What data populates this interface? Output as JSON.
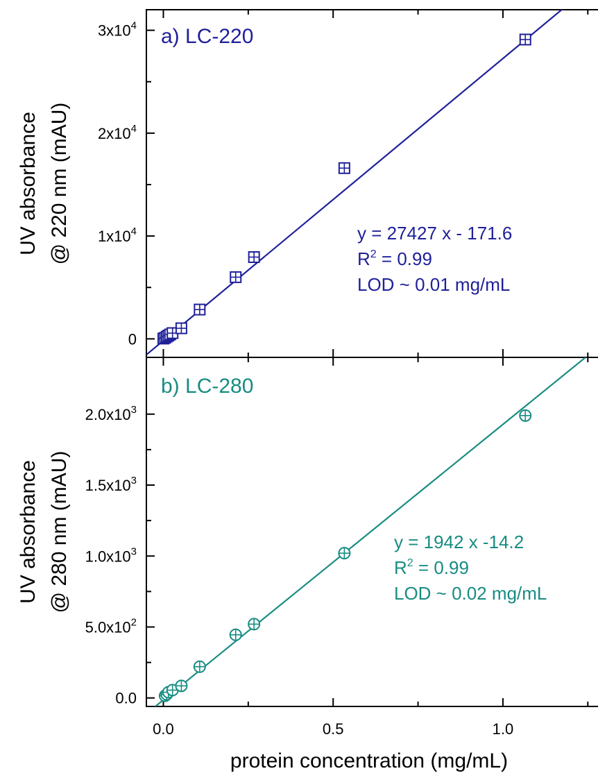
{
  "chart_data": [
    {
      "type": "scatter",
      "panel_label": "a) LC-220",
      "ylabel_line1": "UV absorbance",
      "ylabel_line2": "@ 220 nm (mAU)",
      "xlim": [
        -0.05,
        1.28
      ],
      "ylim": [
        -1800,
        32000
      ],
      "color": "#1f1f99",
      "marker": "square-cross",
      "y_ticks": [
        {
          "value": 0,
          "base": "0",
          "exp": ""
        },
        {
          "value": 10000,
          "base": "1x10",
          "exp": "4"
        },
        {
          "value": 20000,
          "base": "2x10",
          "exp": "4"
        },
        {
          "value": 30000,
          "base": "3x10",
          "exp": "4"
        }
      ],
      "series": [
        {
          "x": [
            0.0,
            0.005,
            0.01,
            0.015,
            0.02,
            0.027,
            0.053,
            0.107,
            0.213,
            0.267,
            0.533,
            1.066
          ],
          "y": [
            30,
            100,
            220,
            320,
            430,
            560,
            1030,
            2850,
            6000,
            7950,
            16600,
            29100
          ]
        }
      ],
      "fit": {
        "slope": 27427,
        "intercept": -171.6
      },
      "annotations": [
        "y   = 27427 x - 171.6",
        "R",
        "2",
        " = 0.99",
        "LOD ~ 0.01 mg/mL"
      ]
    },
    {
      "type": "scatter",
      "panel_label": "b) LC-280",
      "ylabel_line1": "UV absorbance",
      "ylabel_line2": "@ 280 nm (mAU)",
      "xlim": [
        -0.05,
        1.28
      ],
      "ylim": [
        -60,
        2400
      ],
      "color": "#178c82",
      "marker": "circle-cross",
      "y_ticks": [
        {
          "value": 0,
          "base": "0.0",
          "exp": ""
        },
        {
          "value": 500,
          "base": "5.0x10",
          "exp": "2"
        },
        {
          "value": 1000,
          "base": "1.0x10",
          "exp": "3"
        },
        {
          "value": 1500,
          "base": "1.5x10",
          "exp": "3"
        },
        {
          "value": 2000,
          "base": "2.0x10",
          "exp": "3"
        }
      ],
      "series": [
        {
          "x": [
            0.005,
            0.01,
            0.015,
            0.027,
            0.053,
            0.107,
            0.213,
            0.267,
            0.533,
            1.066
          ],
          "y": [
            15,
            25,
            40,
            55,
            85,
            220,
            445,
            520,
            1020,
            1990
          ]
        }
      ],
      "fit": {
        "slope": 1942,
        "intercept": -14.2
      },
      "annotations": [
        "y   = 1942 x -14.2",
        "R",
        "2",
        " = 0.99",
        "LOD ~ 0.02 mg/mL"
      ]
    }
  ],
  "x_ticks": [
    {
      "value": 0.0,
      "label": "0.0"
    },
    {
      "value": 0.5,
      "label": "0.5"
    },
    {
      "value": 1.0,
      "label": "1.0"
    }
  ],
  "xlabel": "protein concentration (mg/mL)"
}
